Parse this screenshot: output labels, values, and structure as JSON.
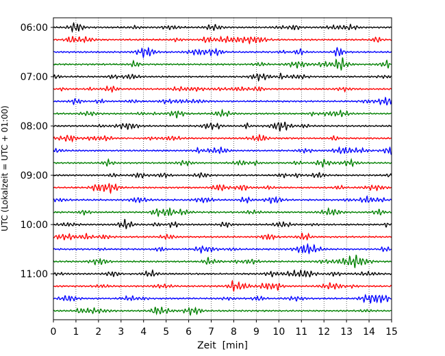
{
  "chart_data": {
    "type": "line",
    "title": "",
    "xlabel": "Zeit  [min]",
    "ylabel": "UTC (Lokalzeit = UTC + 01:00)",
    "xlim": [
      0,
      15
    ],
    "x_ticks": [
      "0",
      "1",
      "2",
      "3",
      "4",
      "5",
      "6",
      "7",
      "8",
      "9",
      "10",
      "11",
      "12",
      "13",
      "14",
      "15"
    ],
    "y_tick_labels": [
      "06:00",
      "07:00",
      "08:00",
      "09:00",
      "10:00",
      "11:00"
    ],
    "grid": "vertical dotted",
    "legend": "none",
    "trace_interval_min": 15,
    "trace_start_utc": "06:00",
    "trace_count": 24,
    "trace_colors": [
      "#000000",
      "#ff0000",
      "#0000ff",
      "#008000"
    ],
    "series": [
      {
        "start": "06:00",
        "color": "#000000"
      },
      {
        "start": "06:15",
        "color": "#ff0000"
      },
      {
        "start": "06:30",
        "color": "#0000ff"
      },
      {
        "start": "06:45",
        "color": "#008000"
      },
      {
        "start": "07:00",
        "color": "#000000"
      },
      {
        "start": "07:15",
        "color": "#ff0000"
      },
      {
        "start": "07:30",
        "color": "#0000ff"
      },
      {
        "start": "07:45",
        "color": "#008000"
      },
      {
        "start": "08:00",
        "color": "#000000"
      },
      {
        "start": "08:15",
        "color": "#ff0000"
      },
      {
        "start": "08:30",
        "color": "#0000ff"
      },
      {
        "start": "08:45",
        "color": "#008000"
      },
      {
        "start": "09:00",
        "color": "#000000"
      },
      {
        "start": "09:15",
        "color": "#ff0000"
      },
      {
        "start": "09:30",
        "color": "#0000ff"
      },
      {
        "start": "09:45",
        "color": "#008000"
      },
      {
        "start": "10:00",
        "color": "#000000"
      },
      {
        "start": "10:15",
        "color": "#ff0000"
      },
      {
        "start": "10:30",
        "color": "#0000ff"
      },
      {
        "start": "10:45",
        "color": "#008000"
      },
      {
        "start": "11:00",
        "color": "#000000"
      },
      {
        "start": "11:15",
        "color": "#ff0000"
      },
      {
        "start": "11:30",
        "color": "#0000ff"
      },
      {
        "start": "11:45",
        "color": "#008000"
      }
    ]
  }
}
